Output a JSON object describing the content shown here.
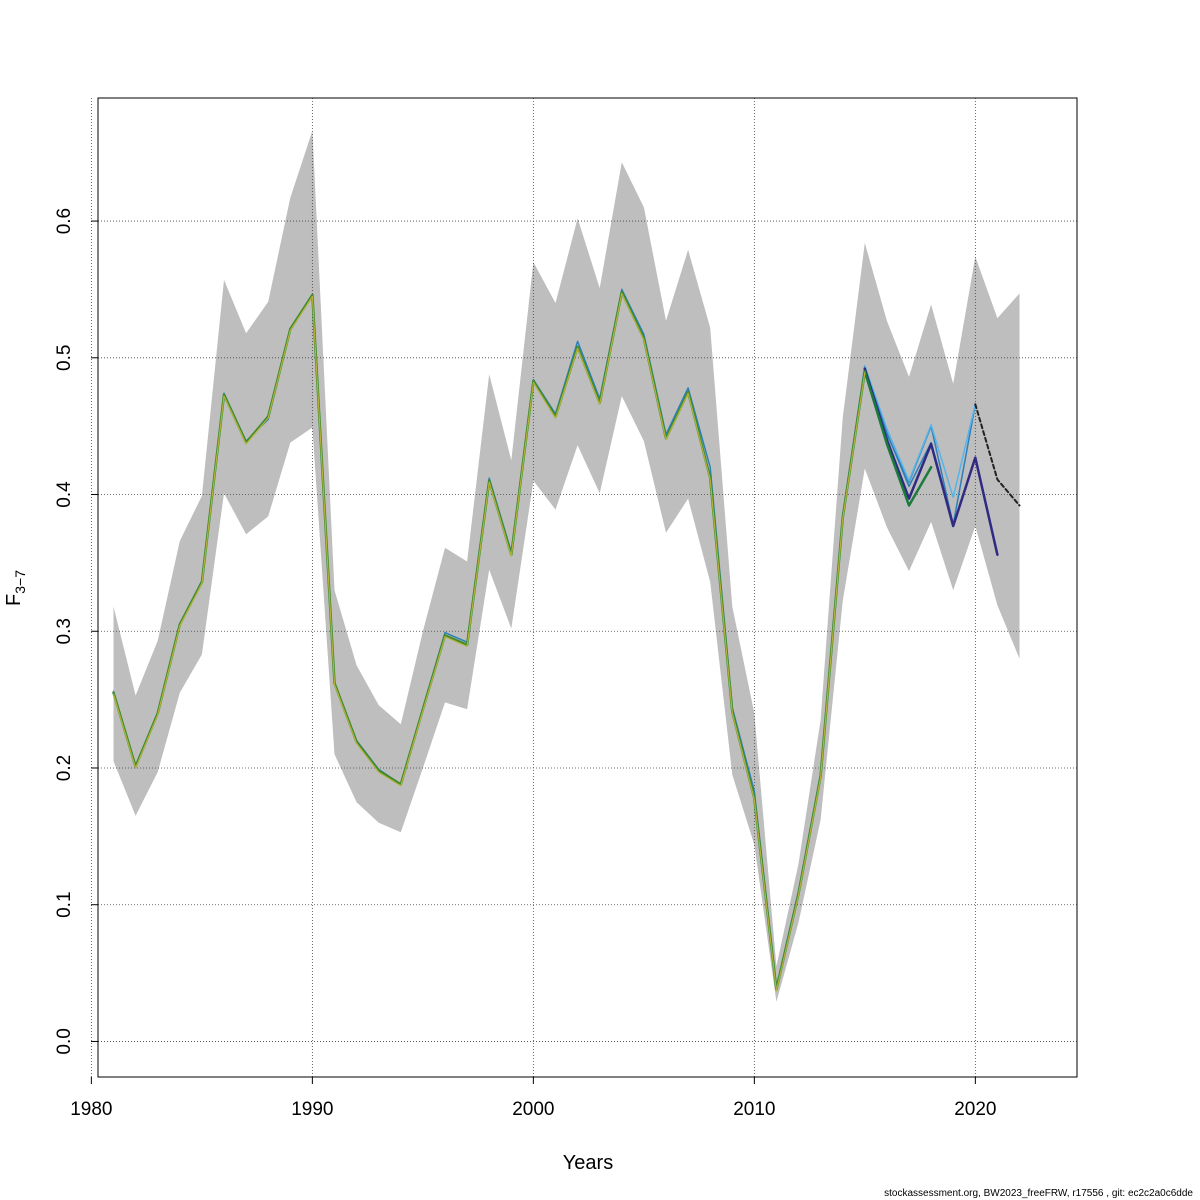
{
  "chart_data": {
    "type": "line",
    "xlabel": "Years",
    "ylabel_main": "F",
    "ylabel_sub": "3−7",
    "xlim": [
      1980.3,
      2024.6
    ],
    "ylim": [
      -0.026,
      0.69
    ],
    "x_ticks": [
      1980,
      1990,
      2000,
      2010,
      2020
    ],
    "x_tick_labels": [
      "1980",
      "1990",
      "2000",
      "2010",
      "2020"
    ],
    "y_ticks": [
      0.0,
      0.1,
      0.2,
      0.3,
      0.4,
      0.5,
      0.6
    ],
    "y_tick_labels": [
      "0.0",
      "0.1",
      "0.2",
      "0.3",
      "0.4",
      "0.5",
      "0.6"
    ],
    "grid": true,
    "confidence_band": {
      "color": "#bebebe",
      "x": [
        1981,
        1982,
        1983,
        1984,
        1985,
        1986,
        1987,
        1988,
        1989,
        1990,
        1991,
        1992,
        1993,
        1994,
        1995,
        1996,
        1997,
        1998,
        1999,
        2000,
        2001,
        2002,
        2003,
        2004,
        2005,
        2006,
        2007,
        2008,
        2009,
        2010,
        2011,
        2012,
        2013,
        2014,
        2015,
        2016,
        2017,
        2018,
        2019,
        2020,
        2021,
        2022
      ],
      "lower": [
        0.205,
        0.165,
        0.197,
        0.255,
        0.283,
        0.401,
        0.371,
        0.384,
        0.438,
        0.449,
        0.21,
        0.175,
        0.16,
        0.153,
        0.2,
        0.248,
        0.243,
        0.345,
        0.302,
        0.41,
        0.389,
        0.436,
        0.401,
        0.472,
        0.439,
        0.372,
        0.397,
        0.336,
        0.195,
        0.144,
        0.029,
        0.087,
        0.162,
        0.322,
        0.419,
        0.376,
        0.344,
        0.38,
        0.33,
        0.377,
        0.319,
        0.28
      ],
      "upper": [
        0.318,
        0.253,
        0.293,
        0.366,
        0.399,
        0.557,
        0.518,
        0.541,
        0.617,
        0.666,
        0.33,
        0.275,
        0.246,
        0.232,
        0.3,
        0.361,
        0.351,
        0.488,
        0.425,
        0.57,
        0.54,
        0.602,
        0.551,
        0.643,
        0.61,
        0.527,
        0.579,
        0.522,
        0.318,
        0.24,
        0.055,
        0.13,
        0.235,
        0.456,
        0.584,
        0.527,
        0.486,
        0.539,
        0.481,
        0.574,
        0.529,
        0.547
      ]
    },
    "series": [
      {
        "color": "#2c7fb8",
        "width": 1.5,
        "dash": false,
        "x": [
          1981,
          1982,
          1983,
          1984,
          1985,
          1986,
          1987,
          1988,
          1989,
          1990,
          1991,
          1992,
          1993,
          1994,
          1995,
          1996,
          1997,
          1998,
          1999,
          2000,
          2001,
          2002,
          2003,
          2004,
          2005,
          2006,
          2007,
          2008,
          2009,
          2010,
          2011,
          2012,
          2013,
          2014,
          2015,
          2016,
          2017,
          2018,
          2019,
          2020
        ],
        "values": [
          0.256,
          0.202,
          0.24,
          0.305,
          0.337,
          0.474,
          0.439,
          0.455,
          0.52,
          0.546,
          0.262,
          0.22,
          0.199,
          0.188,
          0.244,
          0.299,
          0.292,
          0.412,
          0.358,
          0.484,
          0.459,
          0.512,
          0.47,
          0.55,
          0.517,
          0.444,
          0.478,
          0.42,
          0.244,
          0.183,
          0.04,
          0.11,
          0.196,
          0.385,
          0.494,
          0.444,
          0.409,
          0.45,
          0.378,
          0.466
        ]
      },
      {
        "color": "#56b4e9",
        "width": 1.5,
        "dash": false,
        "x": [
          2015,
          2016,
          2017,
          2018,
          2019,
          2020
        ],
        "values": [
          0.494,
          0.448,
          0.41,
          0.451,
          0.398,
          0.466
        ]
      },
      {
        "color": "#222222",
        "width": 2,
        "dash": true,
        "x": [
          2020,
          2021,
          2022
        ],
        "values": [
          0.466,
          0.411,
          0.392
        ]
      },
      {
        "color": "#2c7fb8",
        "width": 1.5,
        "dash": false,
        "x": [
          2015,
          2016,
          2017,
          2018,
          2019
        ],
        "values": [
          0.492,
          0.445,
          0.406,
          0.438,
          0.378
        ]
      },
      {
        "color": "#312a82",
        "width": 2.5,
        "dash": false,
        "x": [
          2015,
          2016,
          2017,
          2018,
          2019,
          2020,
          2021
        ],
        "values": [
          0.492,
          0.44,
          0.397,
          0.437,
          0.377,
          0.427,
          0.356
        ]
      },
      {
        "color": "#1b7a3c",
        "width": 2.5,
        "dash": false,
        "x": [
          2015,
          2016,
          2017,
          2018
        ],
        "values": [
          0.49,
          0.437,
          0.392,
          0.42
        ]
      },
      {
        "color": "#3d8b2e",
        "width": 2.5,
        "dash": false,
        "x": [
          1981,
          1982,
          1983,
          1984,
          1985,
          1986,
          1987,
          1988,
          1989,
          1990,
          1991,
          1992,
          1993,
          1994,
          1995,
          1996,
          1997,
          1998,
          1999,
          2000,
          2001,
          2002,
          2003,
          2004,
          2005,
          2006,
          2007,
          2008,
          2009,
          2010,
          2011,
          2012,
          2013,
          2014,
          2015
        ],
        "values": [
          0.255,
          0.201,
          0.24,
          0.305,
          0.336,
          0.473,
          0.438,
          0.457,
          0.521,
          0.546,
          0.262,
          0.219,
          0.198,
          0.188,
          0.243,
          0.297,
          0.29,
          0.41,
          0.356,
          0.483,
          0.457,
          0.508,
          0.467,
          0.548,
          0.514,
          0.441,
          0.475,
          0.412,
          0.241,
          0.178,
          0.038,
          0.108,
          0.194,
          0.383,
          0.49
        ]
      },
      {
        "color": "#b5b235",
        "width": 1.2,
        "dash": false,
        "x": [
          1981,
          1982,
          1983,
          1984,
          1985,
          1986,
          1987,
          1988,
          1989,
          1990,
          1991,
          1992,
          1993,
          1994,
          1995,
          1996,
          1997,
          1998,
          1999,
          2000,
          2001,
          2002,
          2003,
          2004,
          2005,
          2006,
          2007,
          2008,
          2009,
          2010,
          2011,
          2012,
          2013,
          2014,
          2015
        ],
        "values": [
          0.254,
          0.2,
          0.239,
          0.304,
          0.335,
          0.472,
          0.437,
          0.456,
          0.52,
          0.545,
          0.261,
          0.218,
          0.197,
          0.187,
          0.242,
          0.296,
          0.289,
          0.409,
          0.355,
          0.482,
          0.456,
          0.507,
          0.466,
          0.547,
          0.513,
          0.44,
          0.474,
          0.411,
          0.24,
          0.177,
          0.037,
          0.107,
          0.193,
          0.382,
          0.489
        ]
      }
    ]
  },
  "footer": "stockassessment.org, BW2023_freeFRW, r17556 , git: ec2c2a0c6dde"
}
